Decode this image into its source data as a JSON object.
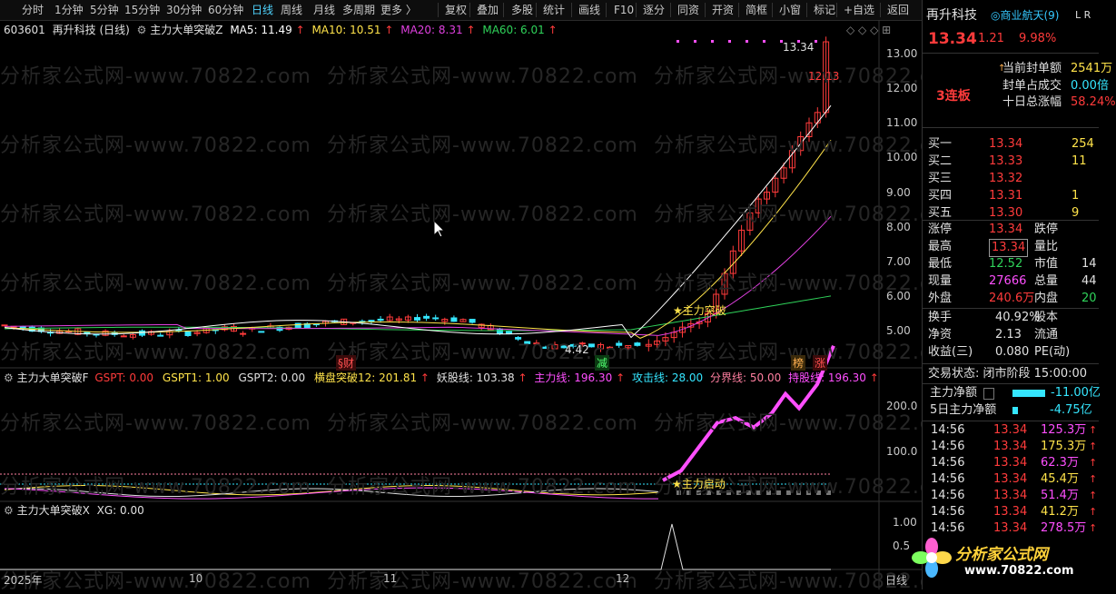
{
  "toolbar": {
    "items": [
      "分时",
      "1分钟",
      "5分钟",
      "15分钟",
      "30分钟",
      "60分钟",
      "日线",
      "周线",
      "月线",
      "多周期",
      "更多 〉",
      "复权",
      "叠加",
      "多股",
      "统计",
      "画线",
      "F10",
      "逐分",
      "同资",
      "开资",
      "简框",
      "小窗",
      "标记",
      "+自选",
      "返回"
    ]
  },
  "main_chart": {
    "code": "603601",
    "name_period": "再升科技 (日线)",
    "indicator": "主力大单突破Z",
    "ma5": "MA5: 11.49",
    "ma10": "MA10: 10.51",
    "ma20": "MA20: 8.31",
    "ma60": "MA60: 6.01",
    "high_label": "13.34",
    "low_label": "4.42",
    "ref_label": "12.13",
    "signal_label": "★主力突破",
    "tags": [
      "§财",
      "减",
      "榜",
      "涨"
    ]
  },
  "sub1": {
    "name": "主力大单突破F",
    "gspt": "GSPT: 0.00",
    "gspt1": "GSPT1: 1.00",
    "gspt2": "GSPT2: 0.00",
    "hpt": "横盘突破12: 201.81",
    "yao": "妖股线: 103.38",
    "zl": "主力线: 196.30",
    "gj": "攻击线: 28.00",
    "fj": "分界线: 50.00",
    "cg": "持股线: 196.30",
    "signal_label": "★主力启动"
  },
  "sub2": {
    "name": "主力大单突破X",
    "xg": "XG: 0.00"
  },
  "axis": {
    "main_ticks": [
      "13.00",
      "12.00",
      "11.00",
      "10.00",
      "9.00",
      "8.00",
      "7.00",
      "6.00",
      "5.00"
    ],
    "sub1_ticks": [
      "200.0",
      "100.0"
    ],
    "sub2_ticks": [
      "1.00",
      "0.5"
    ],
    "dates": [
      "2025年",
      "10",
      "11",
      "12"
    ],
    "period": "日线"
  },
  "watermark": "分析家公式网-www.70822.com",
  "panel": {
    "name": "再升科技",
    "concept": "◎商业航天(9)",
    "price": "13.34",
    "change": "1.21",
    "pct": "9.98%",
    "lianban": "3连板",
    "fd_label": "当前封单额",
    "fd_value": "2541万",
    "zb_label": "封单占成交",
    "zb_value": "0.00倍",
    "szf_label": "十日总涨幅",
    "szf_value": "58.24%",
    "bids": [
      {
        "label": "买一",
        "price": "13.34",
        "vol": "254"
      },
      {
        "label": "买二",
        "price": "13.33",
        "vol": "11"
      },
      {
        "label": "买三",
        "price": "13.32",
        "vol": ""
      },
      {
        "label": "买四",
        "price": "13.31",
        "vol": "1"
      },
      {
        "label": "买五",
        "price": "13.30",
        "vol": "9"
      }
    ],
    "stats": [
      {
        "l1": "涨停",
        "v1": "13.34",
        "l2": "跌停",
        "v2": ""
      },
      {
        "l1": "最高",
        "v1": "13.34",
        "l2": "量比",
        "v2": ""
      },
      {
        "l1": "最低",
        "v1": "12.52",
        "l2": "市值",
        "v2": "14"
      },
      {
        "l1": "现量",
        "v1": "27666",
        "l2": "总量",
        "v2": "44"
      },
      {
        "l1": "外盘",
        "v1": "240.6万",
        "l2": "内盘",
        "v2": "20"
      }
    ],
    "stats2": [
      {
        "l1": "换手",
        "v1": "40.92%",
        "l2": "股本",
        "v2": ""
      },
      {
        "l1": "净资",
        "v1": "2.13",
        "l2": "流通",
        "v2": ""
      },
      {
        "l1": "收益(三)",
        "v1": "0.080",
        "l2": "PE(动)",
        "v2": ""
      }
    ],
    "trade_status": "交易状态: 闭市阶段 15:00:00",
    "zljr_label": "主力净额",
    "zljr_value": "-11.00亿",
    "zljr5_label": "5日主力净额",
    "zljr5_value": "-4.75亿",
    "ticks": [
      {
        "t": "14:56",
        "p": "13.34",
        "v": "125.3万"
      },
      {
        "t": "14:56",
        "p": "13.34",
        "v": "175.3万"
      },
      {
        "t": "14:56",
        "p": "13.34",
        "v": "62.3万"
      },
      {
        "t": "14:56",
        "p": "13.34",
        "v": "45.4万"
      },
      {
        "t": "14:56",
        "p": "13.34",
        "v": "51.4万"
      },
      {
        "t": "14:56",
        "p": "13.34",
        "v": "41.2万"
      },
      {
        "t": "14:56",
        "p": "13.34",
        "v": "278.5万"
      }
    ],
    "logo_text": "分析家公式网",
    "logo_url": "www.70822.com"
  },
  "colors": {
    "up": "#ff3b3b",
    "down": "#35e6ff",
    "ma5": "#ffffff",
    "ma10": "#ffe34a",
    "ma20": "#e040e0",
    "ma60": "#2fd35a"
  }
}
